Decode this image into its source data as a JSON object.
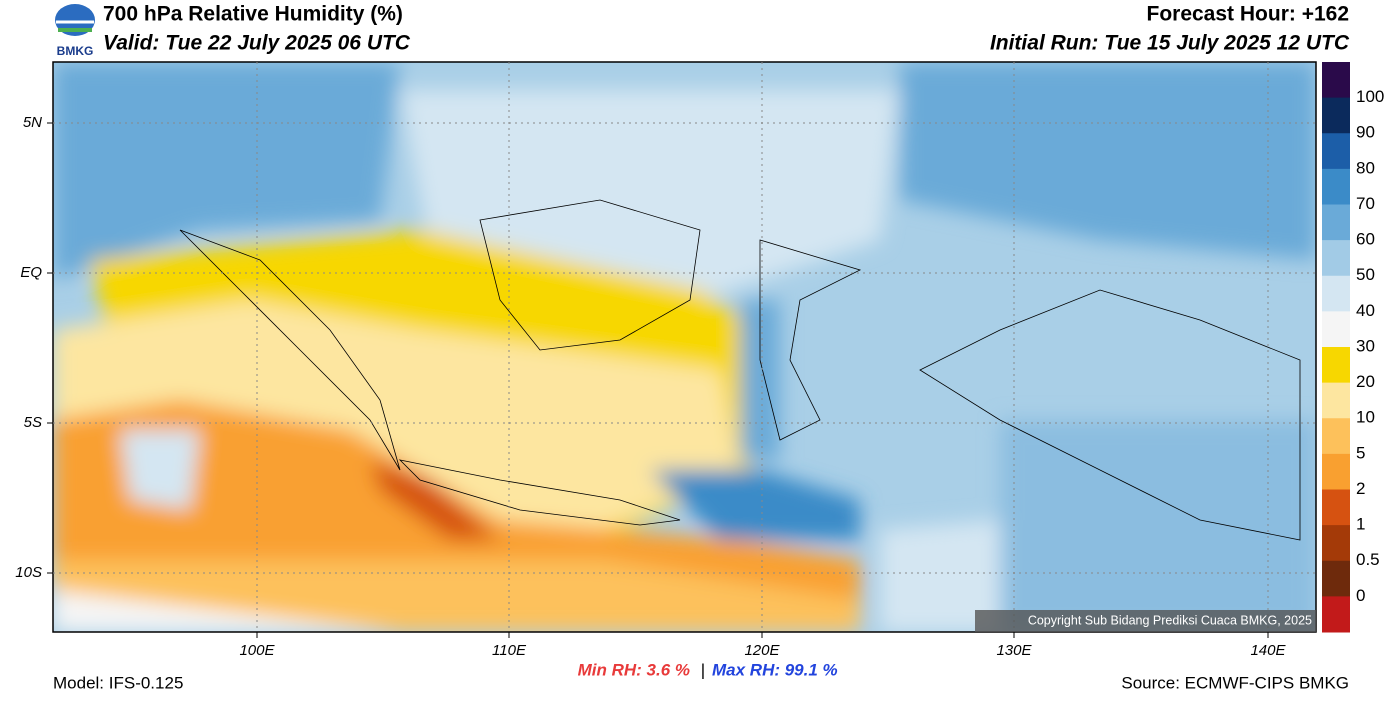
{
  "header": {
    "title": "700 hPa Relative Humidity (%)",
    "valid": "Valid: Tue 22 July 2025 06 UTC",
    "forecast_hour": "Forecast Hour: +162",
    "initial_run": "Initial Run: Tue 15 July 2025 12 UTC",
    "logo": "BMKG"
  },
  "map": {
    "lat_labels": [
      "5N",
      "EQ",
      "5S",
      "10S"
    ],
    "lon_labels": [
      "100E",
      "110E",
      "120E",
      "130E",
      "140E"
    ],
    "copyright": "Copyright Sub Bidang Prediksi Cuaca BMKG, 2025"
  },
  "colorbar": {
    "labels": [
      "100",
      "90",
      "80",
      "70",
      "60",
      "50",
      "40",
      "30",
      "20",
      "10",
      "5",
      "2",
      "1",
      "0.5",
      "0"
    ]
  },
  "footer": {
    "model": "Model: IFS-0.125",
    "min_rh": "Min RH:   3.6 %",
    "separator": "|",
    "max_rh": "Max RH:  99.1 %",
    "source": "Source: ECMWF-CIPS BMKG"
  }
}
